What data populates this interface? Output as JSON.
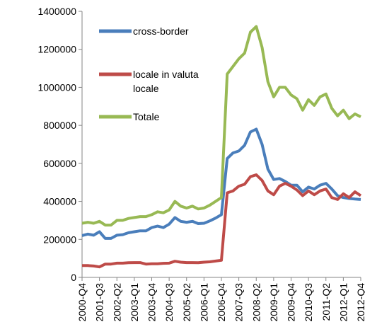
{
  "chart_data": {
    "type": "line",
    "categories": [
      "2000-Q4",
      null,
      null,
      "2001-Q3",
      null,
      null,
      "2002-Q2",
      null,
      null,
      "2003-Q1",
      null,
      null,
      "2003-Q4",
      null,
      null,
      "2004-Q3",
      null,
      null,
      "2005-Q2",
      null,
      null,
      "2006-Q1",
      null,
      null,
      "2006-Q4",
      null,
      null,
      "2007-Q3",
      null,
      null,
      "2008-Q2",
      null,
      null,
      "2009-Q1",
      null,
      null,
      "2009-Q4",
      null,
      null,
      "2010-Q3",
      null,
      null,
      "2011-Q2",
      null,
      null,
      "2012-Q1",
      null,
      null,
      "2012-Q4"
    ],
    "series": [
      {
        "name": "cross-border",
        "color": "#4a7ebb",
        "values": [
          220000,
          228000,
          222000,
          240000,
          205000,
          205000,
          222000,
          225000,
          235000,
          240000,
          245000,
          245000,
          262000,
          270000,
          262000,
          280000,
          315000,
          295000,
          290000,
          295000,
          283000,
          285000,
          297000,
          312000,
          330000,
          625000,
          655000,
          665000,
          695000,
          765000,
          780000,
          700000,
          570000,
          515000,
          520000,
          505000,
          485000,
          485000,
          450000,
          475000,
          465000,
          485000,
          495000,
          465000,
          430000,
          420000,
          415000,
          412000,
          410000
        ]
      },
      {
        "name": "locale in valuta locale",
        "color": "#be4b48",
        "values": [
          62000,
          62000,
          60000,
          55000,
          70000,
          70000,
          75000,
          75000,
          77000,
          78000,
          78000,
          70000,
          72000,
          72000,
          74000,
          75000,
          85000,
          80000,
          78000,
          78000,
          77000,
          80000,
          82000,
          86000,
          90000,
          445000,
          455000,
          480000,
          490000,
          530000,
          540000,
          510000,
          455000,
          435000,
          480000,
          495000,
          480000,
          460000,
          430000,
          455000,
          435000,
          455000,
          465000,
          420000,
          410000,
          440000,
          420000,
          450000,
          430000
        ]
      },
      {
        "name": "Totale",
        "color": "#98b954",
        "values": [
          285000,
          290000,
          285000,
          295000,
          275000,
          275000,
          300000,
          300000,
          310000,
          315000,
          320000,
          320000,
          330000,
          345000,
          340000,
          355000,
          400000,
          375000,
          365000,
          375000,
          360000,
          365000,
          380000,
          400000,
          420000,
          1070000,
          1110000,
          1150000,
          1180000,
          1290000,
          1320000,
          1210000,
          1030000,
          950000,
          1000000,
          1000000,
          960000,
          940000,
          880000,
          935000,
          905000,
          950000,
          965000,
          890000,
          850000,
          880000,
          835000,
          860000,
          845000
        ]
      }
    ],
    "ylim": [
      0,
      1400000
    ],
    "yticks": [
      0,
      200000,
      400000,
      600000,
      800000,
      1000000,
      1200000,
      1400000
    ],
    "grid": false
  }
}
